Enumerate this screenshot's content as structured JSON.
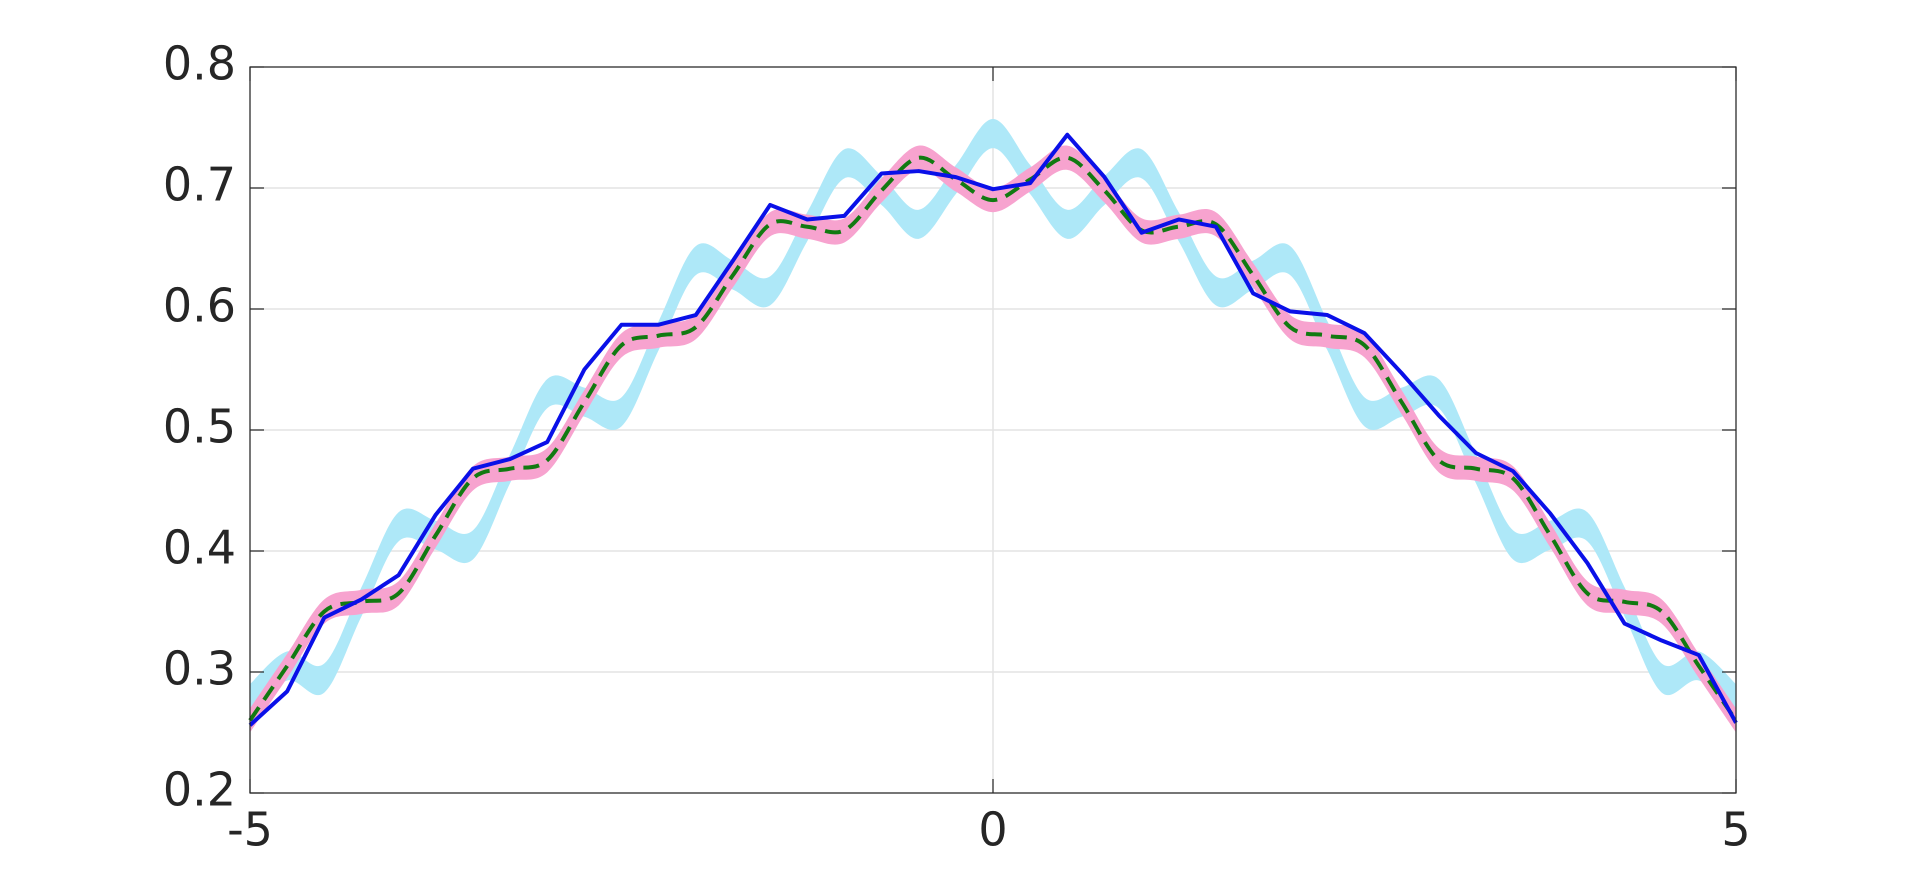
{
  "chart_data": {
    "type": "line",
    "x": [
      -5,
      -4.75,
      -4.5,
      -4.25,
      -4,
      -3.75,
      -3.5,
      -3.25,
      -3,
      -2.75,
      -2.5,
      -2.25,
      -2,
      -1.75,
      -1.5,
      -1.25,
      -1,
      -0.75,
      -0.5,
      -0.25,
      0,
      0.25,
      0.5,
      0.75,
      1,
      1.25,
      1.5,
      1.75,
      2,
      2.25,
      2.5,
      2.75,
      3,
      3.25,
      3.5,
      3.75,
      4,
      4.25,
      4.5,
      4.75,
      5
    ],
    "bands": [
      {
        "color": "#aee8f8",
        "upper": [
          0.29,
          0.317,
          0.307,
          0.37,
          0.432,
          0.425,
          0.417,
          0.48,
          0.542,
          0.535,
          0.527,
          0.59,
          0.652,
          0.64,
          0.627,
          0.68,
          0.732,
          0.71,
          0.682,
          0.719,
          0.757,
          0.719,
          0.682,
          0.71,
          0.732,
          0.68,
          0.627,
          0.64,
          0.652,
          0.59,
          0.527,
          0.535,
          0.542,
          0.48,
          0.417,
          0.425,
          0.432,
          0.37,
          0.307,
          0.317,
          0.29
        ],
        "lower": [
          0.266,
          0.293,
          0.283,
          0.346,
          0.408,
          0.401,
          0.393,
          0.456,
          0.518,
          0.511,
          0.503,
          0.566,
          0.628,
          0.616,
          0.603,
          0.656,
          0.708,
          0.686,
          0.658,
          0.695,
          0.733,
          0.695,
          0.658,
          0.686,
          0.708,
          0.656,
          0.603,
          0.616,
          0.628,
          0.566,
          0.503,
          0.511,
          0.518,
          0.456,
          0.393,
          0.401,
          0.408,
          0.346,
          0.283,
          0.293,
          0.266
        ]
      },
      {
        "color": "#f7a3cf",
        "upper": [
          0.27,
          0.315,
          0.36,
          0.368,
          0.375,
          0.423,
          0.47,
          0.478,
          0.485,
          0.533,
          0.58,
          0.588,
          0.595,
          0.638,
          0.68,
          0.678,
          0.675,
          0.708,
          0.735,
          0.717,
          0.7,
          0.717,
          0.735,
          0.708,
          0.675,
          0.678,
          0.68,
          0.638,
          0.595,
          0.588,
          0.58,
          0.533,
          0.485,
          0.478,
          0.47,
          0.423,
          0.375,
          0.368,
          0.36,
          0.315,
          0.27
        ],
        "lower": [
          0.25,
          0.295,
          0.34,
          0.348,
          0.355,
          0.403,
          0.45,
          0.458,
          0.465,
          0.513,
          0.56,
          0.568,
          0.575,
          0.618,
          0.66,
          0.658,
          0.655,
          0.688,
          0.715,
          0.697,
          0.68,
          0.697,
          0.715,
          0.688,
          0.655,
          0.658,
          0.66,
          0.618,
          0.575,
          0.568,
          0.56,
          0.513,
          0.465,
          0.458,
          0.45,
          0.403,
          0.355,
          0.348,
          0.34,
          0.295,
          0.25
        ]
      }
    ],
    "series": [
      {
        "color": "#117a11",
        "dashed": true,
        "values": [
          0.26,
          0.305,
          0.35,
          0.358,
          0.365,
          0.413,
          0.46,
          0.468,
          0.475,
          0.523,
          0.57,
          0.578,
          0.585,
          0.628,
          0.67,
          0.668,
          0.665,
          0.698,
          0.725,
          0.707,
          0.69,
          0.707,
          0.725,
          0.698,
          0.665,
          0.668,
          0.67,
          0.628,
          0.585,
          0.578,
          0.57,
          0.523,
          0.475,
          0.468,
          0.46,
          0.413,
          0.365,
          0.358,
          0.35,
          0.305,
          0.26
        ]
      },
      {
        "color": "#0a10e8",
        "dashed": false,
        "values": [
          0.256,
          0.284,
          0.345,
          0.36,
          0.38,
          0.43,
          0.468,
          0.476,
          0.49,
          0.55,
          0.587,
          0.587,
          0.595,
          0.64,
          0.686,
          0.674,
          0.677,
          0.712,
          0.714,
          0.709,
          0.699,
          0.704,
          0.744,
          0.709,
          0.663,
          0.674,
          0.668,
          0.613,
          0.598,
          0.595,
          0.58,
          0.547,
          0.512,
          0.481,
          0.466,
          0.431,
          0.39,
          0.34,
          0.326,
          0.314,
          0.258
        ]
      }
    ],
    "xlim": [
      -5,
      5
    ],
    "ylim": [
      0.2,
      0.8
    ],
    "xticks": [
      -5,
      0,
      5
    ],
    "yticks": [
      0.2,
      0.3,
      0.4,
      0.5,
      0.6,
      0.7,
      0.8
    ],
    "grid": true
  }
}
